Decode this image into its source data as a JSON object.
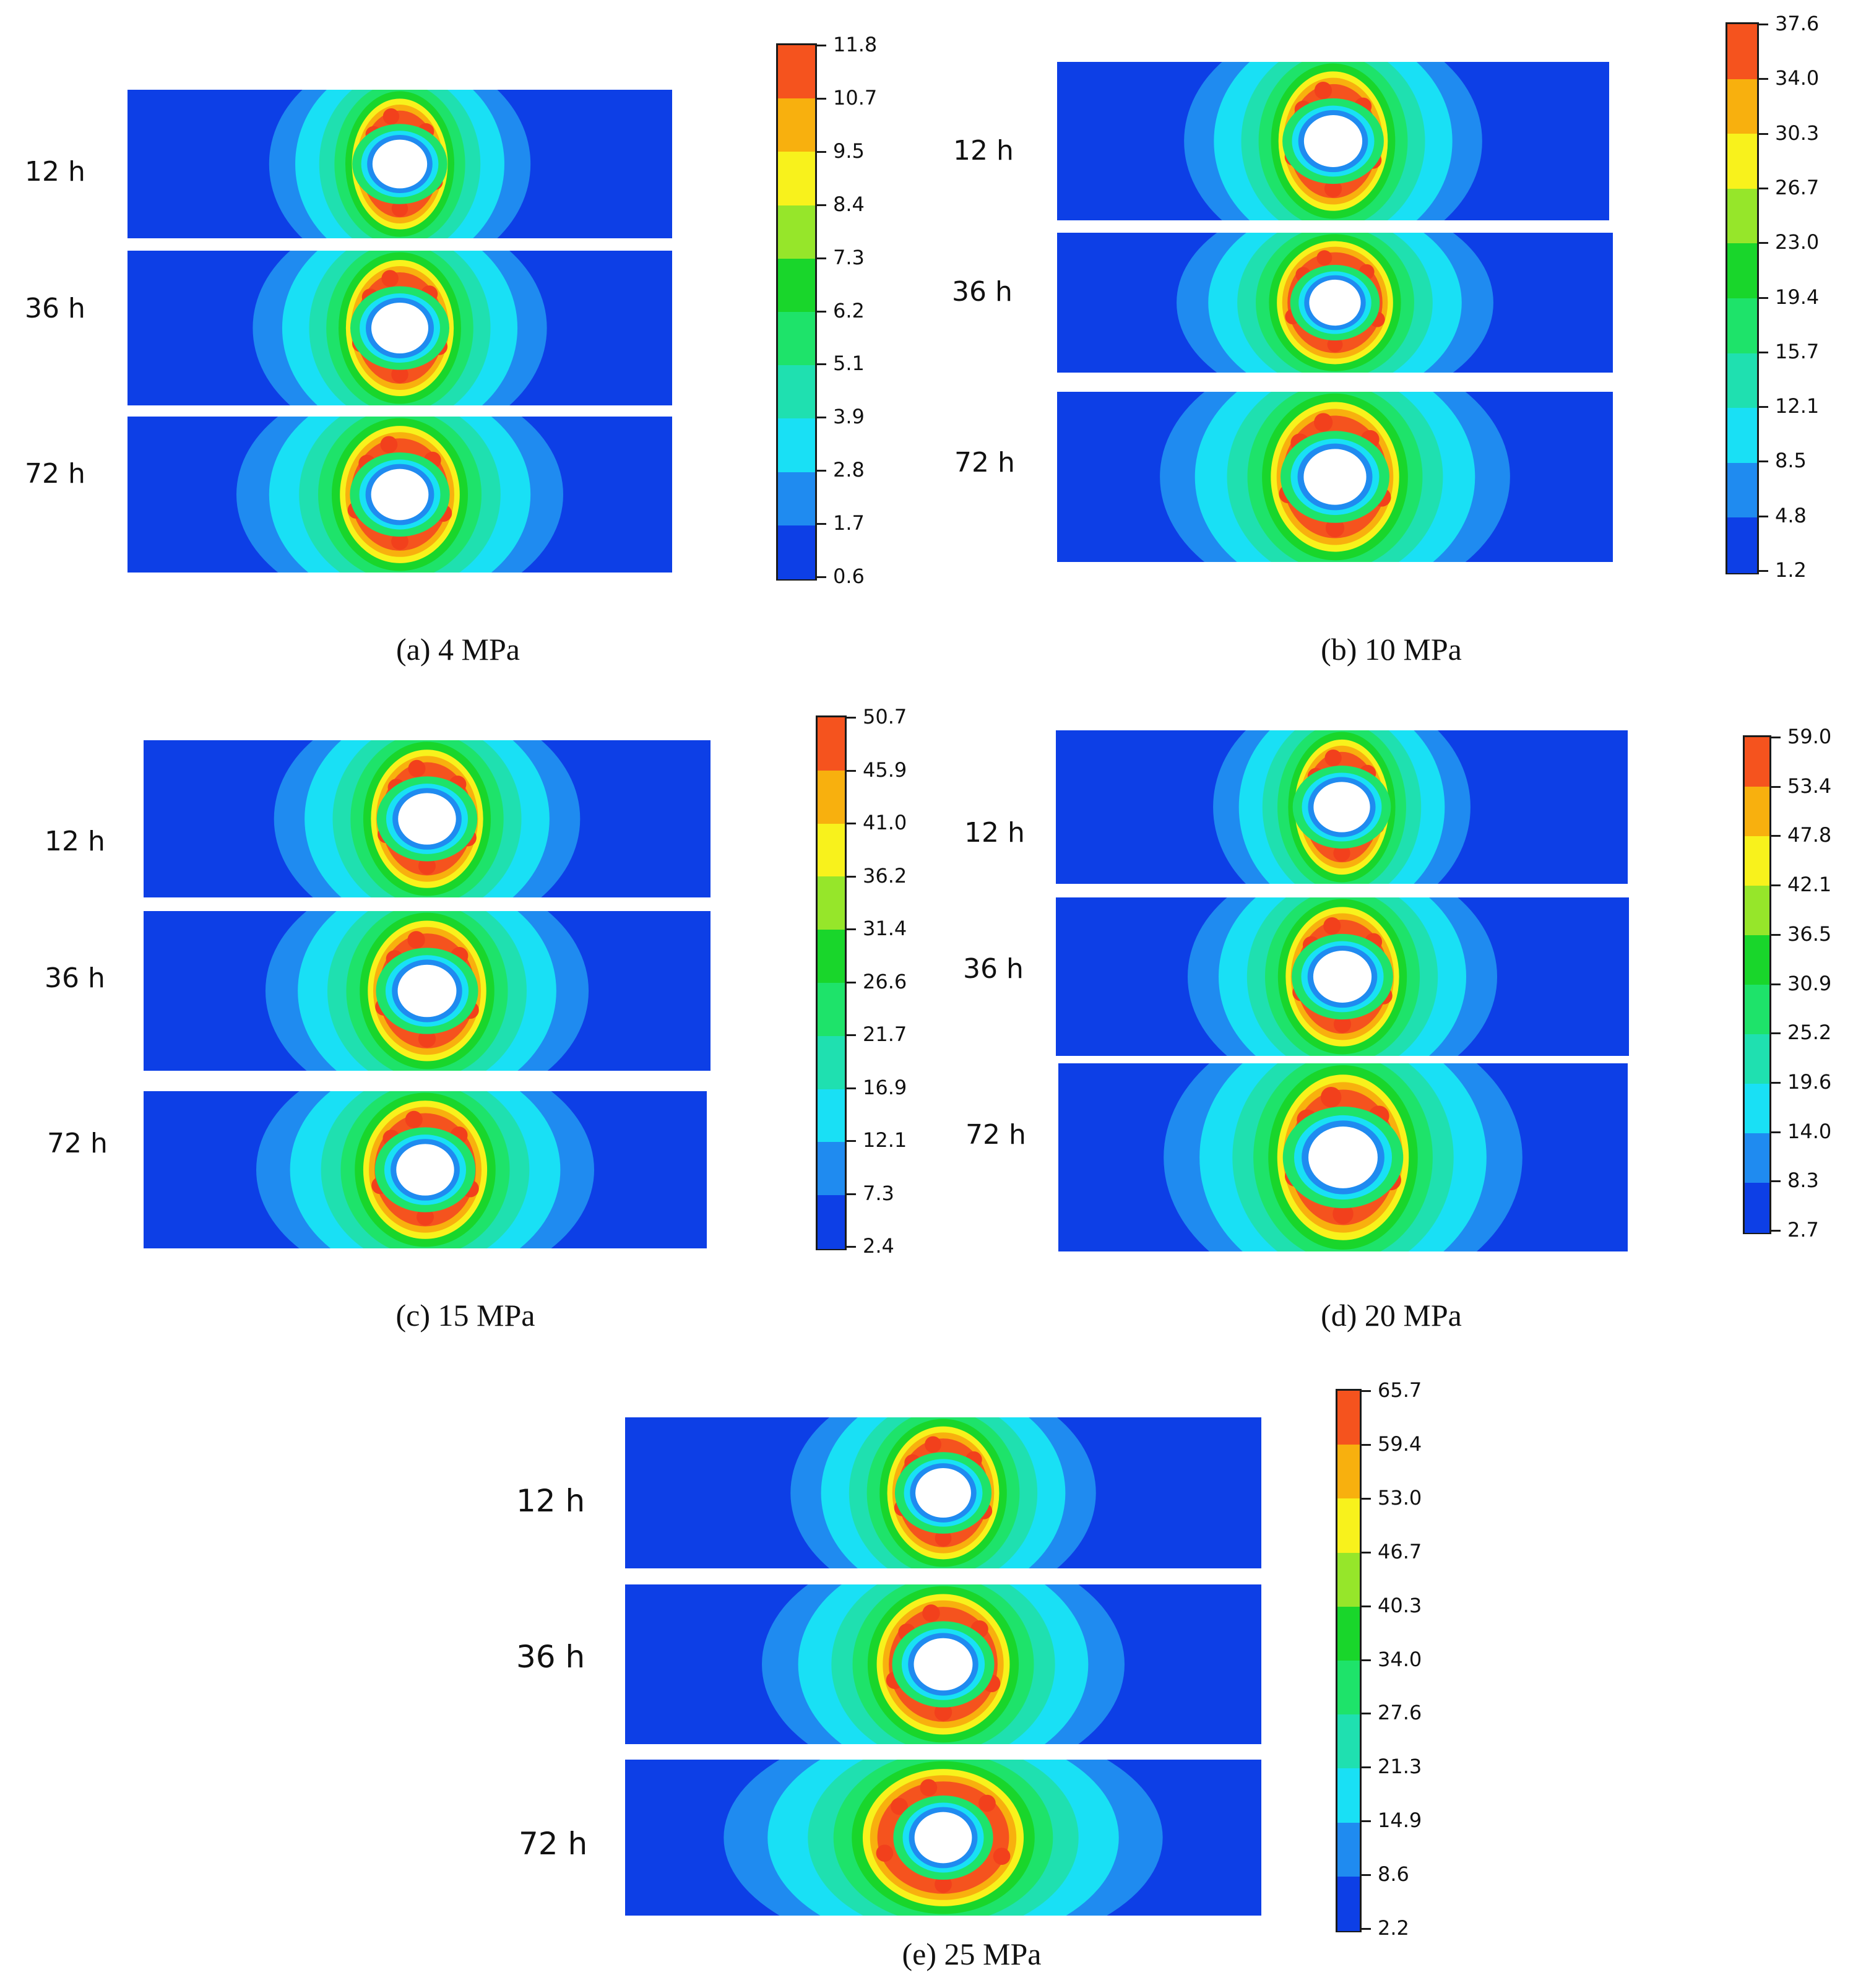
{
  "time_labels": [
    "12 h",
    "36 h",
    "72 h"
  ],
  "palette": [
    "#0d3fe6",
    "#1f8bf0",
    "#19e0f5",
    "#1fe0b0",
    "#1ee36a",
    "#19d62b",
    "#96e62a",
    "#f8f21c",
    "#f8b00e",
    "#f5531e"
  ],
  "panels": [
    {
      "id": "a",
      "caption": "(a) 4 MPa",
      "colorbar_ticks": [
        "11.8",
        "10.7",
        "9.5",
        "8.4",
        "7.3",
        "6.2",
        "5.1",
        "3.9",
        "2.8",
        "1.7",
        "0.6"
      ]
    },
    {
      "id": "b",
      "caption": "(b) 10 MPa",
      "colorbar_ticks": [
        "37.6",
        "34.0",
        "30.3",
        "26.7",
        "23.0",
        "19.4",
        "15.7",
        "12.1",
        "8.5",
        "4.8",
        "1.2"
      ]
    },
    {
      "id": "c",
      "caption": "(c) 15 MPa",
      "colorbar_ticks": [
        "50.7",
        "45.9",
        "41.0",
        "36.2",
        "31.4",
        "26.6",
        "21.7",
        "16.9",
        "12.1",
        "7.3",
        "2.4"
      ]
    },
    {
      "id": "d",
      "caption": "(d) 20 MPa",
      "colorbar_ticks": [
        "59.0",
        "53.4",
        "47.8",
        "42.1",
        "36.5",
        "30.9",
        "25.2",
        "19.6",
        "14.0",
        "8.3",
        "2.7"
      ]
    },
    {
      "id": "e",
      "caption": "(e) 25 MPa",
      "colorbar_ticks": [
        "65.7",
        "59.4",
        "53.0",
        "46.7",
        "40.3",
        "34.0",
        "27.6",
        "21.3",
        "14.9",
        "8.6",
        "2.2"
      ]
    }
  ]
}
